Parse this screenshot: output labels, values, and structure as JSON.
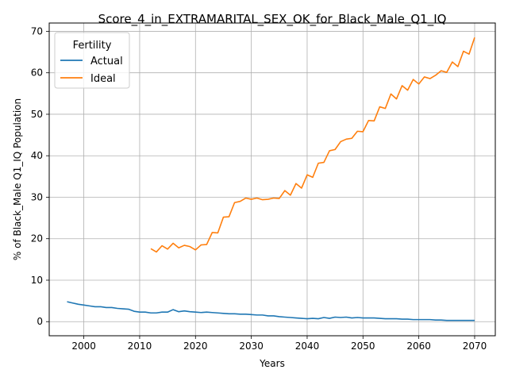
{
  "chart_data": {
    "type": "line",
    "title": "Score_4_in_EXTRAMARITAL_SEX_OK_for_Black_Male_Q1_IQ",
    "xlabel": "Years",
    "ylabel": "% of Black_Male Q1_IQ Population",
    "xlim": [
      1993.8,
      2073.7
    ],
    "ylim": [
      -3.4,
      72.0
    ],
    "xticks": [
      2000,
      2010,
      2020,
      2030,
      2040,
      2050,
      2060,
      2070
    ],
    "yticks": [
      0,
      10,
      20,
      30,
      40,
      50,
      60,
      70
    ],
    "grid": true,
    "legend": {
      "title": "Fertility",
      "placement": "top-left"
    },
    "series": [
      {
        "name": "Actual",
        "color": "#1f77b4",
        "x": [
          1997,
          1998,
          1999,
          2000,
          2001,
          2002,
          2003,
          2004,
          2005,
          2006,
          2007,
          2008,
          2009,
          2010,
          2011,
          2012,
          2013,
          2014,
          2015,
          2016,
          2017,
          2018,
          2019,
          2020,
          2021,
          2022,
          2023,
          2024,
          2025,
          2026,
          2027,
          2028,
          2029,
          2030,
          2031,
          2032,
          2033,
          2034,
          2035,
          2036,
          2037,
          2038,
          2039,
          2040,
          2041,
          2042,
          2043,
          2044,
          2045,
          2046,
          2047,
          2048,
          2049,
          2050,
          2051,
          2052,
          2053,
          2054,
          2055,
          2056,
          2057,
          2058,
          2059,
          2060,
          2061,
          2062,
          2063,
          2064,
          2065,
          2066,
          2067,
          2068,
          2069,
          2070
        ],
        "y": [
          4.8,
          4.5,
          4.2,
          4.0,
          3.8,
          3.6,
          3.6,
          3.4,
          3.4,
          3.2,
          3.1,
          3.0,
          2.5,
          2.3,
          2.3,
          2.1,
          2.1,
          2.3,
          2.3,
          2.9,
          2.4,
          2.6,
          2.4,
          2.3,
          2.2,
          2.3,
          2.2,
          2.1,
          2.0,
          1.9,
          1.9,
          1.8,
          1.8,
          1.7,
          1.6,
          1.6,
          1.4,
          1.4,
          1.2,
          1.1,
          1.0,
          0.9,
          0.8,
          0.7,
          0.8,
          0.7,
          1.0,
          0.8,
          1.1,
          1.0,
          1.1,
          0.9,
          1.0,
          0.9,
          0.9,
          0.9,
          0.8,
          0.7,
          0.7,
          0.7,
          0.6,
          0.6,
          0.5,
          0.5,
          0.5,
          0.5,
          0.4,
          0.4,
          0.3,
          0.3,
          0.3,
          0.3,
          0.3,
          0.3
        ]
      },
      {
        "name": "Ideal",
        "color": "#ff7f0e",
        "x": [
          2012,
          2013,
          2014,
          2015,
          2016,
          2017,
          2018,
          2019,
          2020,
          2021,
          2022,
          2023,
          2024,
          2025,
          2026,
          2027,
          2028,
          2029,
          2030,
          2031,
          2032,
          2033,
          2034,
          2035,
          2036,
          2037,
          2038,
          2039,
          2040,
          2041,
          2042,
          2043,
          2044,
          2045,
          2046,
          2047,
          2048,
          2049,
          2050,
          2051,
          2052,
          2053,
          2054,
          2055,
          2056,
          2057,
          2058,
          2059,
          2060,
          2061,
          2062,
          2063,
          2064,
          2065,
          2066,
          2067,
          2068,
          2069,
          2070
        ],
        "y": [
          17.6,
          16.8,
          18.3,
          17.5,
          18.9,
          17.8,
          18.4,
          18.1,
          17.3,
          18.5,
          18.6,
          21.5,
          21.4,
          25.2,
          25.3,
          28.7,
          29.0,
          29.8,
          29.5,
          29.8,
          29.4,
          29.5,
          29.8,
          29.7,
          31.6,
          30.5,
          33.3,
          32.2,
          35.4,
          34.8,
          38.2,
          38.4,
          41.2,
          41.5,
          43.4,
          44.0,
          44.2,
          45.9,
          45.8,
          48.5,
          48.4,
          51.8,
          51.4,
          54.9,
          53.7,
          56.9,
          55.8,
          58.4,
          57.3,
          59.0,
          58.6,
          59.4,
          60.5,
          60.1,
          62.6,
          61.5,
          65.2,
          64.5,
          68.5
        ]
      }
    ]
  }
}
